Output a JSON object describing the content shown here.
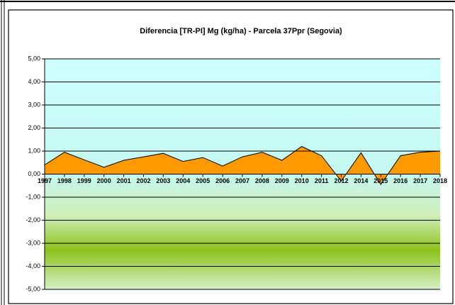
{
  "chart_data": {
    "type": "area",
    "title": "Diferencia [TR-PI] Mg (kg/ha) - Parcela 37Ppr (Segovia)",
    "categories": [
      "1997",
      "1998",
      "1999",
      "2000",
      "2001",
      "2002",
      "2003",
      "2004",
      "2005",
      "2006",
      "2007",
      "2008",
      "2009",
      "2010",
      "2011",
      "2012",
      "2014",
      "2015",
      "2016",
      "2017",
      "2018"
    ],
    "values": [
      0.4,
      0.95,
      0.62,
      0.3,
      0.6,
      0.75,
      0.9,
      0.55,
      0.72,
      0.35,
      0.75,
      0.95,
      0.6,
      1.2,
      0.8,
      -0.3,
      0.93,
      -0.45,
      0.8,
      0.95,
      1.0
    ],
    "color": "#ff9900",
    "ylim": [
      -5,
      5
    ],
    "yticks": [
      {
        "value": 5,
        "label": "5,00"
      },
      {
        "value": 4,
        "label": "4,00"
      },
      {
        "value": 3,
        "label": "3,00"
      },
      {
        "value": 2,
        "label": "2,00"
      },
      {
        "value": 1,
        "label": "1,00"
      },
      {
        "value": 0,
        "label": "0,00"
      },
      {
        "value": -1,
        "label": "-1,00"
      },
      {
        "value": -2,
        "label": "-2,00"
      },
      {
        "value": -3,
        "label": "-3,00"
      },
      {
        "value": -4,
        "label": "-4,00"
      },
      {
        "value": -5,
        "label": "-5,00"
      }
    ],
    "grid": true
  }
}
